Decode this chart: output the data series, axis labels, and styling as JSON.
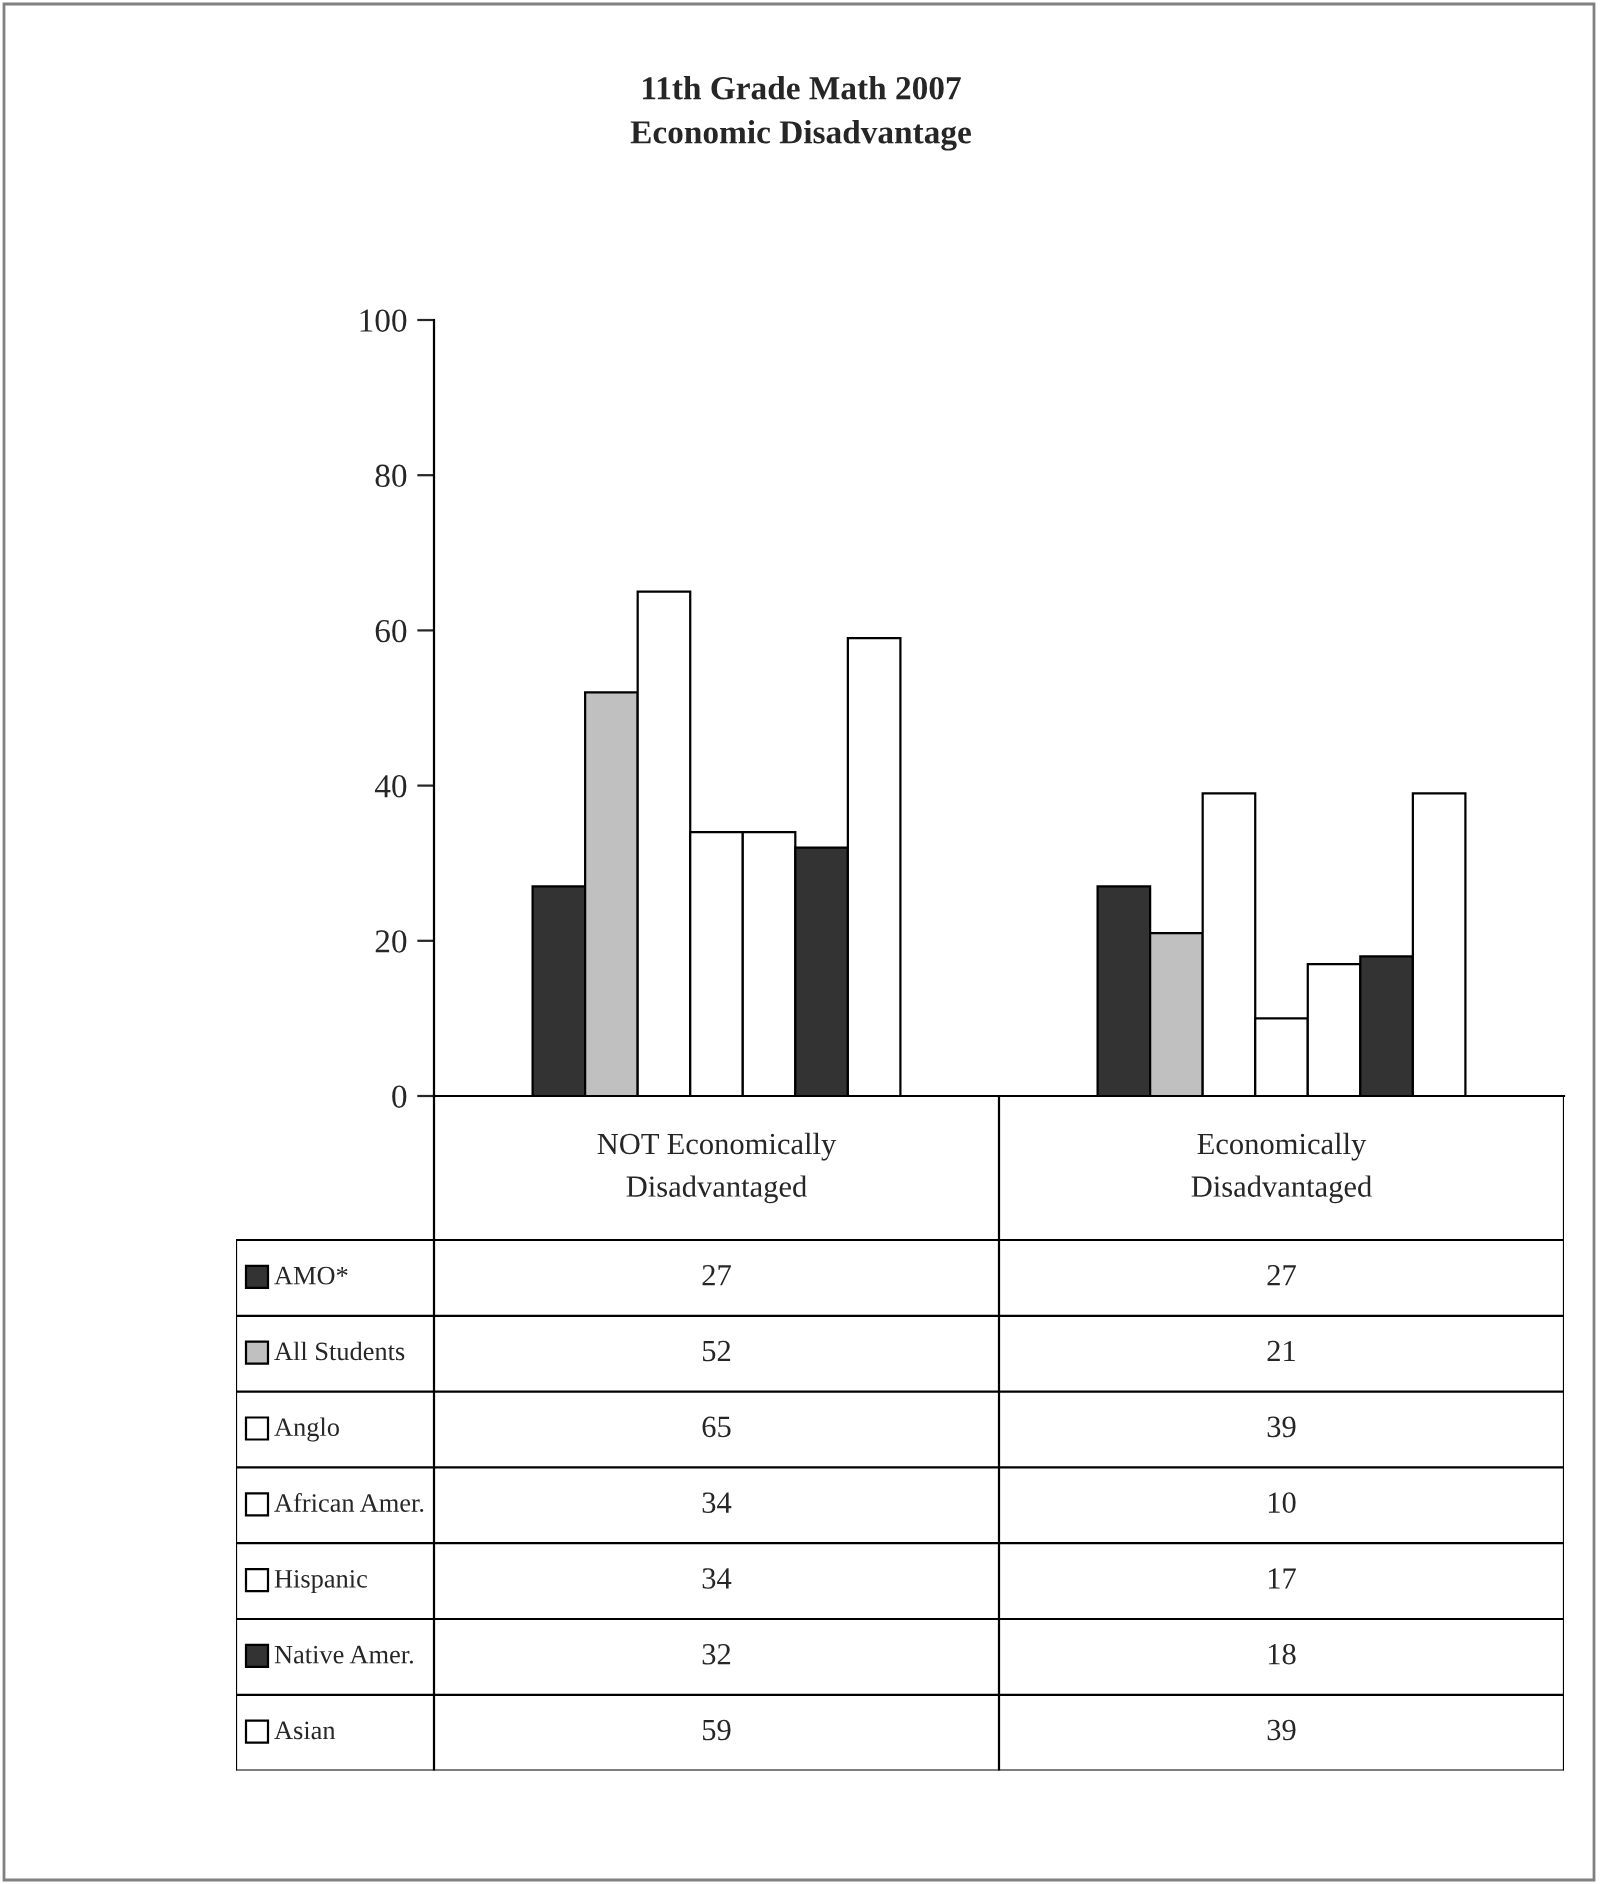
{
  "chart_data": {
    "type": "bar",
    "title": "11th Grade Math 2007\nEconomic Disadvantage",
    "categories": [
      "NOT Economically\nDisadvantaged",
      "Economically\nDisadvantaged"
    ],
    "series": [
      {
        "name": "AMO*",
        "color": "#333333",
        "values": [
          27,
          27
        ]
      },
      {
        "name": "All Students",
        "color": "#c0c0c0",
        "values": [
          52,
          21
        ]
      },
      {
        "name": "Anglo",
        "color": "#ffffff",
        "values": [
          65,
          39
        ]
      },
      {
        "name": "African Amer.",
        "color": "#ffffff",
        "values": [
          34,
          10
        ]
      },
      {
        "name": "Hispanic",
        "color": "#ffffff",
        "values": [
          34,
          17
        ]
      },
      {
        "name": "Native Amer.",
        "color": "#333333",
        "values": [
          32,
          18
        ]
      },
      {
        "name": "Asian",
        "color": "#ffffff",
        "values": [
          59,
          39
        ]
      }
    ],
    "ylim": [
      0,
      100
    ],
    "yticks": [
      0,
      20,
      40,
      60,
      80,
      100
    ],
    "grid": false,
    "legend": "bottom",
    "data_labels": true
  }
}
